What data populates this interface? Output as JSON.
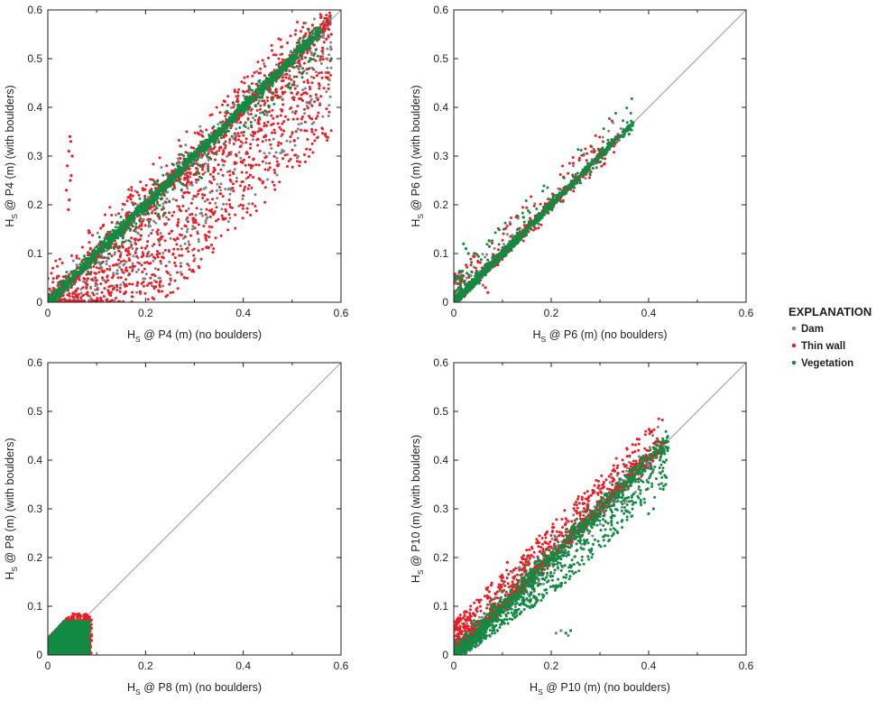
{
  "colors": {
    "dam": "#808285",
    "thin_wall": "#ed1c24",
    "vegetation": "#128a43",
    "reference_line": "#a7a9ac",
    "axis": "#231f20"
  },
  "legend": {
    "title": "EXPLANATION",
    "items": [
      {
        "key": "dam",
        "label": "Dam"
      },
      {
        "key": "thin_wall",
        "label": "Thin wall"
      },
      {
        "key": "vegetation",
        "label": "Vegetation"
      }
    ]
  },
  "chart_data": [
    {
      "type": "scatter",
      "panel": "P4",
      "xlabel": {
        "main": "H",
        "sub": "S",
        "rest": " @ P4 (m) (no boulders)"
      },
      "ylabel": {
        "main": "H",
        "sub": "S",
        "rest": " @ P4 (m) (with boulders)"
      },
      "xlim": [
        0,
        0.6
      ],
      "ylim": [
        0,
        0.6
      ],
      "xticks": [
        "0",
        "0.2",
        "0.4",
        "0.6"
      ],
      "yticks": [
        "0",
        "0.1",
        "0.2",
        "0.3",
        "0.4",
        "0.5",
        "0.6"
      ],
      "reference_line": "1:1",
      "series": [
        {
          "key": "dam",
          "dist": {
            "n": 1100,
            "xmin": 0.0,
            "xmax": 0.58,
            "core": 0.008,
            "below_frac": 0.45,
            "below_max": 0.22,
            "above_frac": 0.05,
            "above_max": 0.05
          }
        },
        {
          "key": "thin_wall",
          "dist": {
            "n": 1700,
            "xmin": 0.0,
            "xmax": 0.58,
            "core": 0.008,
            "below_frac": 0.65,
            "below_max": 0.24,
            "above_frac": 0.18,
            "above_max": 0.07
          }
        },
        {
          "key": "vegetation",
          "dist": {
            "n": 1500,
            "xmin": 0.0,
            "xmax": 0.56,
            "core": 0.006,
            "below_frac": 0.12,
            "below_max": 0.06,
            "above_frac": 0.08,
            "above_max": 0.03
          }
        }
      ],
      "extra_points": [
        {
          "key": "thin_wall",
          "x": 0.045,
          "y": 0.34
        },
        {
          "key": "thin_wall",
          "x": 0.047,
          "y": 0.33
        },
        {
          "key": "thin_wall",
          "x": 0.043,
          "y": 0.31
        },
        {
          "key": "thin_wall",
          "x": 0.04,
          "y": 0.28
        },
        {
          "key": "thin_wall",
          "x": 0.046,
          "y": 0.25
        },
        {
          "key": "thin_wall",
          "x": 0.038,
          "y": 0.23
        },
        {
          "key": "thin_wall",
          "x": 0.044,
          "y": 0.21
        },
        {
          "key": "thin_wall",
          "x": 0.042,
          "y": 0.19
        },
        {
          "key": "thin_wall",
          "x": 0.05,
          "y": 0.3
        },
        {
          "key": "thin_wall",
          "x": 0.048,
          "y": 0.26
        },
        {
          "key": "thin_wall",
          "x": 0.58,
          "y": 0.55
        },
        {
          "key": "thin_wall",
          "x": 0.575,
          "y": 0.56
        },
        {
          "key": "thin_wall",
          "x": 0.57,
          "y": 0.54
        },
        {
          "key": "dam",
          "x": 0.58,
          "y": 0.52
        },
        {
          "key": "dam",
          "x": 0.57,
          "y": 0.5
        },
        {
          "key": "dam",
          "x": 0.53,
          "y": 0.41
        },
        {
          "key": "dam",
          "x": 0.55,
          "y": 0.42
        },
        {
          "key": "vegetation",
          "x": 0.58,
          "y": 0.5
        },
        {
          "key": "vegetation",
          "x": 0.535,
          "y": 0.48
        },
        {
          "key": "vegetation",
          "x": 0.52,
          "y": 0.47
        }
      ]
    },
    {
      "type": "scatter",
      "panel": "P6",
      "xlabel": {
        "main": "H",
        "sub": "S",
        "rest": " @ P6 (m) (no boulders)"
      },
      "ylabel": {
        "main": "H",
        "sub": "S",
        "rest": " @ P6 (m) (with boulders)"
      },
      "xlim": [
        0,
        0.6
      ],
      "ylim": [
        0,
        0.6
      ],
      "xticks": [
        "0",
        "0.2",
        "0.4",
        "0.6"
      ],
      "yticks": [
        "0",
        "0.1",
        "0.2",
        "0.3",
        "0.4",
        "0.5",
        "0.6"
      ],
      "reference_line": "1:1",
      "series": [
        {
          "key": "dam",
          "dist": {
            "n": 500,
            "xmin": 0.0,
            "xmax": 0.35,
            "core": 0.004,
            "below_frac": 0.05,
            "below_max": 0.02,
            "above_frac": 0.1,
            "above_max": 0.05,
            "xskew": 2.2
          }
        },
        {
          "key": "thin_wall",
          "dist": {
            "n": 700,
            "xmin": 0.0,
            "xmax": 0.34,
            "core": 0.004,
            "below_frac": 0.1,
            "below_max": 0.03,
            "above_frac": 0.2,
            "above_max": 0.06,
            "xskew": 2.2
          }
        },
        {
          "key": "vegetation",
          "dist": {
            "n": 1000,
            "xmin": 0.0,
            "xmax": 0.37,
            "core": 0.005,
            "below_frac": 0.1,
            "below_max": 0.02,
            "above_frac": 0.12,
            "above_max": 0.06,
            "xskew": 2.0
          }
        }
      ],
      "extra_points": [
        {
          "key": "vegetation",
          "x": 0.02,
          "y": 0.12
        },
        {
          "key": "vegetation",
          "x": 0.025,
          "y": 0.11
        },
        {
          "key": "vegetation",
          "x": 0.03,
          "y": 0.1
        },
        {
          "key": "thin_wall",
          "x": 0.065,
          "y": 0.03
        },
        {
          "key": "thin_wall",
          "x": 0.07,
          "y": 0.02
        },
        {
          "key": "dam",
          "x": 0.06,
          "y": 0.035
        },
        {
          "key": "vegetation",
          "x": 0.36,
          "y": 0.345
        },
        {
          "key": "dam",
          "x": 0.335,
          "y": 0.33
        }
      ]
    },
    {
      "type": "scatter",
      "panel": "P8",
      "xlabel": {
        "main": "H",
        "sub": "S",
        "rest": " @ P8 (m) (no boulders)"
      },
      "ylabel": {
        "main": "H",
        "sub": "S",
        "rest": " @ P8 (m) (with boulders)"
      },
      "xlim": [
        0,
        0.6
      ],
      "ylim": [
        0,
        0.6
      ],
      "xticks": [
        "0",
        "0.2",
        "0.4",
        "0.6"
      ],
      "yticks": [
        "0",
        "0.1",
        "0.2",
        "0.3",
        "0.4",
        "0.5",
        "0.6"
      ],
      "reference_line": "1:1",
      "series": [
        {
          "key": "dam",
          "dist": {
            "box": true,
            "n": 400,
            "xmin": 0.0,
            "xmax": 0.085,
            "ymin": 0.0,
            "ymax": 0.075
          }
        },
        {
          "key": "thin_wall",
          "dist": {
            "box": true,
            "n": 500,
            "xmin": 0.0,
            "xmax": 0.09,
            "ymin": 0.0,
            "ymax": 0.085
          }
        },
        {
          "key": "vegetation",
          "dist": {
            "box": true,
            "n": 1400,
            "xmin": 0.0,
            "xmax": 0.085,
            "ymin": 0.0,
            "ymax": 0.07
          }
        }
      ],
      "extra_points": []
    },
    {
      "type": "scatter",
      "panel": "P10",
      "xlabel": {
        "main": "H",
        "sub": "S",
        "rest": " @ P10 (m) (no boulders)"
      },
      "ylabel": {
        "main": "H",
        "sub": "S",
        "rest": " @ P10 (m) (with boulders)"
      },
      "xlim": [
        0,
        0.6
      ],
      "ylim": [
        0,
        0.6
      ],
      "xticks": [
        "0",
        "0.2",
        "0.4",
        "0.6"
      ],
      "yticks": [
        "0",
        "0.1",
        "0.2",
        "0.3",
        "0.4",
        "0.5",
        "0.6"
      ],
      "reference_line": "1:1",
      "series": [
        {
          "key": "dam",
          "dist": {
            "n": 800,
            "xmin": 0.0,
            "xmax": 0.43,
            "core": 0.006,
            "below_frac": 0.2,
            "below_max": 0.05,
            "above_frac": 0.2,
            "above_max": 0.05,
            "xskew": 1.6
          }
        },
        {
          "key": "thin_wall",
          "dist": {
            "n": 1300,
            "xmin": 0.0,
            "xmax": 0.43,
            "core": 0.006,
            "below_frac": 0.05,
            "below_max": 0.02,
            "above_frac": 0.55,
            "above_max": 0.07,
            "xskew": 1.6
          }
        },
        {
          "key": "vegetation",
          "dist": {
            "n": 1400,
            "xmin": 0.0,
            "xmax": 0.44,
            "core": 0.012,
            "below_frac": 0.55,
            "below_max": 0.09,
            "above_frac": 0.04,
            "above_max": 0.02,
            "xskew": 1.5
          }
        }
      ],
      "extra_points": [
        {
          "key": "dam",
          "x": 0.43,
          "y": 0.43
        },
        {
          "key": "thin_wall",
          "x": 0.43,
          "y": 0.435
        },
        {
          "key": "vegetation",
          "x": 0.435,
          "y": 0.35
        },
        {
          "key": "vegetation",
          "x": 0.43,
          "y": 0.34
        },
        {
          "key": "vegetation",
          "x": 0.41,
          "y": 0.3
        },
        {
          "key": "vegetation",
          "x": 0.4,
          "y": 0.29
        },
        {
          "key": "dam",
          "x": 0.4,
          "y": 0.39
        },
        {
          "key": "dam",
          "x": 0.41,
          "y": 0.38
        },
        {
          "key": "dam",
          "x": 0.12,
          "y": 0.17
        },
        {
          "key": "dam",
          "x": 0.135,
          "y": 0.18
        },
        {
          "key": "thin_wall",
          "x": 0.11,
          "y": 0.19
        },
        {
          "key": "thin_wall",
          "x": 0.14,
          "y": 0.2
        },
        {
          "key": "thin_wall",
          "x": 0.17,
          "y": 0.23
        },
        {
          "key": "thin_wall",
          "x": 0.19,
          "y": 0.25
        },
        {
          "key": "thin_wall",
          "x": 0.23,
          "y": 0.28
        },
        {
          "key": "dam",
          "x": 0.21,
          "y": 0.045
        },
        {
          "key": "dam",
          "x": 0.22,
          "y": 0.05
        },
        {
          "key": "vegetation",
          "x": 0.23,
          "y": 0.045
        },
        {
          "key": "dam",
          "x": 0.235,
          "y": 0.04
        },
        {
          "key": "vegetation",
          "x": 0.24,
          "y": 0.05
        },
        {
          "key": "dam",
          "x": 0.05,
          "y": 0.02
        },
        {
          "key": "vegetation",
          "x": 0.055,
          "y": 0.025
        }
      ]
    }
  ]
}
